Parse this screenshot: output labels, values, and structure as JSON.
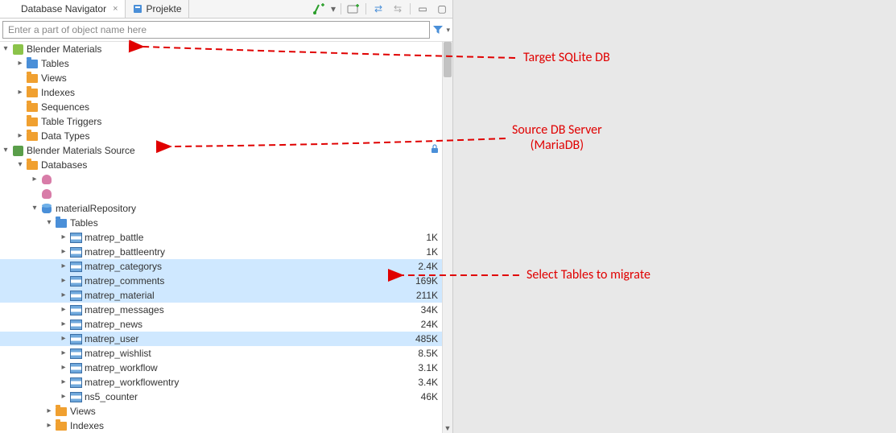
{
  "tabs": {
    "nav_label": "Database Navigator",
    "projects_label": "Projekte"
  },
  "filter": {
    "placeholder": "Enter a part of object name here"
  },
  "tree": {
    "conn1": "Blender Materials",
    "conn1_children": {
      "tables": "Tables",
      "views": "Views",
      "indexes": "Indexes",
      "sequences": "Sequences",
      "triggers": "Table Triggers",
      "datatypes": "Data Types"
    },
    "conn2": "Blender Materials Source",
    "databases": "Databases",
    "hiddenDb1": "       ",
    "hiddenDb2": "       ",
    "db3": "materialRepository",
    "db3_tables": "Tables",
    "tables": [
      {
        "name": "matrep_battle",
        "size": "1K",
        "sel": false
      },
      {
        "name": "matrep_battleentry",
        "size": "1K",
        "sel": false
      },
      {
        "name": "matrep_categorys",
        "size": "2.4K",
        "sel": true
      },
      {
        "name": "matrep_comments",
        "size": "169K",
        "sel": true
      },
      {
        "name": "matrep_material",
        "size": "211K",
        "sel": true
      },
      {
        "name": "matrep_messages",
        "size": "34K",
        "sel": false
      },
      {
        "name": "matrep_news",
        "size": "24K",
        "sel": false
      },
      {
        "name": "matrep_user",
        "size": "485K",
        "sel": true
      },
      {
        "name": "matrep_wishlist",
        "size": "8.5K",
        "sel": false
      },
      {
        "name": "matrep_workflow",
        "size": "3.1K",
        "sel": false
      },
      {
        "name": "matrep_workflowentry",
        "size": "3.4K",
        "sel": false
      },
      {
        "name": "ns5_counter",
        "size": "46K",
        "sel": false
      }
    ],
    "db3_views": "Views",
    "db3_indexes": "Indexes"
  },
  "annotations": {
    "target": "Target SQLite DB",
    "source_l1": "Source DB Server",
    "source_l2": "(MariaDB)",
    "select": "Select Tables to migrate"
  },
  "colors": {
    "annot": "#e00000",
    "sel_bg": "#cfe8ff"
  }
}
